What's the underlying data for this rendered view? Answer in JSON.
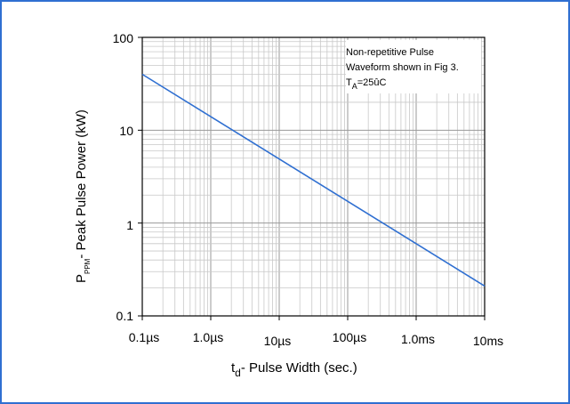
{
  "chart_data": {
    "type": "line",
    "title": "",
    "x_scale": "log",
    "y_scale": "log",
    "xlim_seconds": [
      1e-07,
      0.01
    ],
    "ylim_kW": [
      0.1,
      100
    ],
    "grid": true,
    "x_tick_labels": [
      "0.1µs",
      "1.0µs",
      "10µs",
      "100µs",
      "1.0ms",
      "10ms"
    ],
    "y_tick_labels": [
      "100",
      "10",
      "1",
      "0.1"
    ],
    "xlabel": {
      "main": "t",
      "sub": "d",
      "rest": "- Pulse Width (sec.)"
    },
    "ylabel": {
      "main": "P",
      "sub": "PPM",
      "rest": "- Peak Pulse Power (kW)"
    },
    "annotation": {
      "line1": "Non-repetitive Pulse",
      "line2": "Waveform shown in Fig 3.",
      "line3_main": "T",
      "line3_sub": "A",
      "line3_rest": "=25ûC"
    },
    "series": [
      {
        "x": [
          1e-07,
          0.01
        ],
        "y": [
          40,
          0.21
        ]
      }
    ],
    "line_color": "#2f6fd1"
  }
}
